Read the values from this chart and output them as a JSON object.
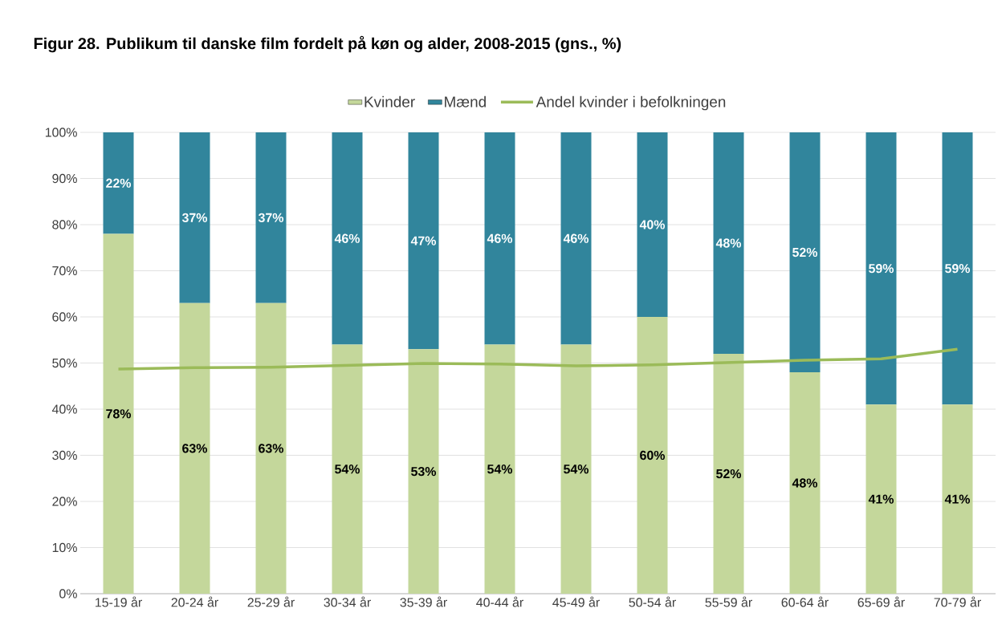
{
  "chart_data": {
    "type": "bar",
    "stacked": true,
    "title": "Figur 28. Publikum til danske film fordelt på køn og alder, 2008-2015 (gns., %)",
    "categories": [
      "15-19 år",
      "20-24 år",
      "25-29 år",
      "30-34 år",
      "35-39 år",
      "40-44 år",
      "45-49 år",
      "50-54 år",
      "55-59 år",
      "60-64 år",
      "65-69 år",
      "70-79 år"
    ],
    "series": [
      {
        "name": "Kvinder",
        "color": "#c4d79b",
        "values": [
          78,
          63,
          63,
          54,
          53,
          54,
          54,
          60,
          52,
          48,
          41,
          41
        ],
        "value_labels": [
          "78%",
          "63%",
          "63%",
          "54%",
          "53%",
          "54%",
          "54%",
          "60%",
          "52%",
          "48%",
          "41%",
          "41%"
        ]
      },
      {
        "name": "Mænd",
        "color": "#31859c",
        "values": [
          22,
          37,
          37,
          46,
          47,
          46,
          46,
          40,
          48,
          52,
          59,
          59
        ],
        "value_labels": [
          "22%",
          "37%",
          "37%",
          "46%",
          "47%",
          "46%",
          "46%",
          "40%",
          "48%",
          "52%",
          "59%",
          "59%"
        ]
      },
      {
        "name": "Andel kvinder i befolkningen",
        "type": "line",
        "color": "#9bbb59",
        "values": [
          48.7,
          49.0,
          49.1,
          49.5,
          49.9,
          49.8,
          49.4,
          49.6,
          50.1,
          50.6,
          50.9,
          53.0
        ]
      }
    ],
    "ylim": [
      0,
      100
    ],
    "yticks": [
      {
        "value": 0,
        "label": "0%"
      },
      {
        "value": 10,
        "label": "10%"
      },
      {
        "value": 20,
        "label": "20%"
      },
      {
        "value": 30,
        "label": "30%"
      },
      {
        "value": 40,
        "label": "40%"
      },
      {
        "value": 50,
        "label": "50%"
      },
      {
        "value": 60,
        "label": "60%"
      },
      {
        "value": 70,
        "label": "70%"
      },
      {
        "value": 80,
        "label": "80%"
      },
      {
        "value": 90,
        "label": "90%"
      },
      {
        "value": 100,
        "label": "100%"
      }
    ],
    "grid": "y",
    "legend": "top"
  }
}
